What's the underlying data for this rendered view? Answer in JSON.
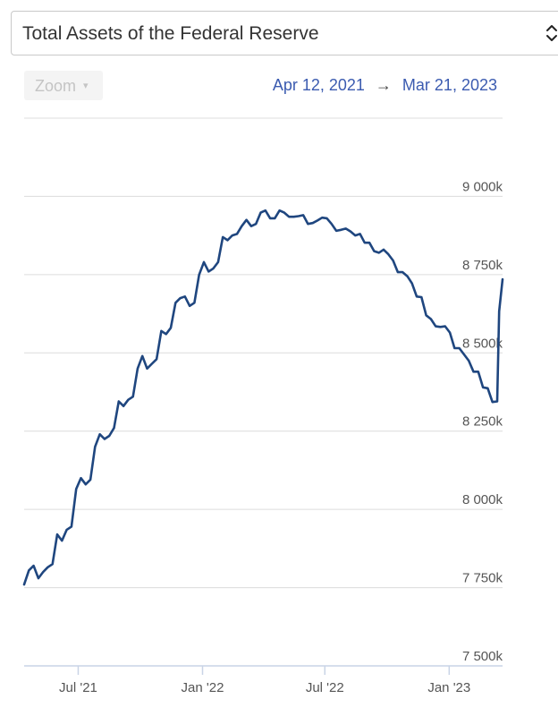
{
  "selector": {
    "label": "Total Assets of the Federal Reserve"
  },
  "zoom": {
    "label": "Zoom",
    "caret": "▾"
  },
  "range": {
    "start": "Apr 12, 2021",
    "arrow": "→",
    "end": "Mar 21, 2023"
  },
  "colors": {
    "line": "#1f467f",
    "grid": "#dcdcdc",
    "axis": "#c9d4e6",
    "range_text": "#3b5bb0"
  },
  "chart_data": {
    "type": "line",
    "title": "Total Assets of the Federal Reserve",
    "xlabel": "",
    "ylabel": "",
    "ylim": [
      7500,
      9250
    ],
    "y_unit": "k",
    "y_ticks": [
      {
        "value": 7500,
        "label": "7 500k"
      },
      {
        "value": 7750,
        "label": "7 750k"
      },
      {
        "value": 8000,
        "label": "8 000k"
      },
      {
        "value": 8250,
        "label": "8 250k"
      },
      {
        "value": 8500,
        "label": "8 500k"
      },
      {
        "value": 8750,
        "label": "8 750k"
      },
      {
        "value": 9000,
        "label": "9 000k"
      }
    ],
    "x_range": [
      "2021-04-12",
      "2023-03-21"
    ],
    "x_ticks": [
      {
        "date": "2021-07-01",
        "label": "Jul '21"
      },
      {
        "date": "2022-01-01",
        "label": "Jan '22"
      },
      {
        "date": "2022-07-01",
        "label": "Jul '22"
      },
      {
        "date": "2023-01-01",
        "label": "Jan '23"
      }
    ],
    "grid": true,
    "series": [
      {
        "color": "#1f467f",
        "points": [
          [
            "2021-04-12",
            7760
          ],
          [
            "2021-04-19",
            7805
          ],
          [
            "2021-04-26",
            7820
          ],
          [
            "2021-05-03",
            7780
          ],
          [
            "2021-05-10",
            7800
          ],
          [
            "2021-05-17",
            7815
          ],
          [
            "2021-05-24",
            7825
          ],
          [
            "2021-05-31",
            7920
          ],
          [
            "2021-06-07",
            7900
          ],
          [
            "2021-06-14",
            7935
          ],
          [
            "2021-06-21",
            7945
          ],
          [
            "2021-06-28",
            8065
          ],
          [
            "2021-07-05",
            8100
          ],
          [
            "2021-07-12",
            8080
          ],
          [
            "2021-07-19",
            8095
          ],
          [
            "2021-07-26",
            8200
          ],
          [
            "2021-08-02",
            8240
          ],
          [
            "2021-08-09",
            8225
          ],
          [
            "2021-08-16",
            8235
          ],
          [
            "2021-08-23",
            8260
          ],
          [
            "2021-08-30",
            8345
          ],
          [
            "2021-09-06",
            8330
          ],
          [
            "2021-09-13",
            8350
          ],
          [
            "2021-09-20",
            8360
          ],
          [
            "2021-09-27",
            8450
          ],
          [
            "2021-10-04",
            8490
          ],
          [
            "2021-10-11",
            8450
          ],
          [
            "2021-10-18",
            8465
          ],
          [
            "2021-10-25",
            8480
          ],
          [
            "2021-11-01",
            8570
          ],
          [
            "2021-11-08",
            8560
          ],
          [
            "2021-11-15",
            8580
          ],
          [
            "2021-11-22",
            8660
          ],
          [
            "2021-11-29",
            8675
          ],
          [
            "2021-12-06",
            8680
          ],
          [
            "2021-12-13",
            8650
          ],
          [
            "2021-12-20",
            8660
          ],
          [
            "2021-12-27",
            8750
          ],
          [
            "2022-01-03",
            8790
          ],
          [
            "2022-01-10",
            8760
          ],
          [
            "2022-01-17",
            8770
          ],
          [
            "2022-01-24",
            8790
          ],
          [
            "2022-01-31",
            8870
          ],
          [
            "2022-02-07",
            8860
          ],
          [
            "2022-02-14",
            8875
          ],
          [
            "2022-02-21",
            8880
          ],
          [
            "2022-02-28",
            8905
          ],
          [
            "2022-03-07",
            8925
          ],
          [
            "2022-03-14",
            8905
          ],
          [
            "2022-03-21",
            8912
          ],
          [
            "2022-03-28",
            8948
          ],
          [
            "2022-04-04",
            8955
          ],
          [
            "2022-04-11",
            8930
          ],
          [
            "2022-04-18",
            8930
          ],
          [
            "2022-04-25",
            8955
          ],
          [
            "2022-05-02",
            8948
          ],
          [
            "2022-05-09",
            8935
          ],
          [
            "2022-05-16",
            8935
          ],
          [
            "2022-05-23",
            8937
          ],
          [
            "2022-05-30",
            8940
          ],
          [
            "2022-06-06",
            8912
          ],
          [
            "2022-06-13",
            8915
          ],
          [
            "2022-06-20",
            8923
          ],
          [
            "2022-06-27",
            8932
          ],
          [
            "2022-07-04",
            8930
          ],
          [
            "2022-07-11",
            8912
          ],
          [
            "2022-07-18",
            8890
          ],
          [
            "2022-07-25",
            8893
          ],
          [
            "2022-08-01",
            8897
          ],
          [
            "2022-08-08",
            8888
          ],
          [
            "2022-08-15",
            8875
          ],
          [
            "2022-08-22",
            8880
          ],
          [
            "2022-08-29",
            8852
          ],
          [
            "2022-09-05",
            8852
          ],
          [
            "2022-09-12",
            8825
          ],
          [
            "2022-09-19",
            8820
          ],
          [
            "2022-09-26",
            8830
          ],
          [
            "2022-10-03",
            8815
          ],
          [
            "2022-10-10",
            8795
          ],
          [
            "2022-10-17",
            8758
          ],
          [
            "2022-10-24",
            8758
          ],
          [
            "2022-10-31",
            8745
          ],
          [
            "2022-11-07",
            8722
          ],
          [
            "2022-11-14",
            8680
          ],
          [
            "2022-11-21",
            8678
          ],
          [
            "2022-11-28",
            8620
          ],
          [
            "2022-12-05",
            8608
          ],
          [
            "2022-12-12",
            8585
          ],
          [
            "2022-12-19",
            8583
          ],
          [
            "2022-12-26",
            8585
          ],
          [
            "2023-01-02",
            8565
          ],
          [
            "2023-01-09",
            8515
          ],
          [
            "2023-01-16",
            8515
          ],
          [
            "2023-01-23",
            8495
          ],
          [
            "2023-01-30",
            8475
          ],
          [
            "2023-02-06",
            8440
          ],
          [
            "2023-02-13",
            8440
          ],
          [
            "2023-02-20",
            8390
          ],
          [
            "2023-02-27",
            8387
          ],
          [
            "2023-03-06",
            8343
          ],
          [
            "2023-03-13",
            8345
          ],
          [
            "2023-03-16",
            8633
          ],
          [
            "2023-03-21",
            8735
          ]
        ]
      }
    ]
  }
}
